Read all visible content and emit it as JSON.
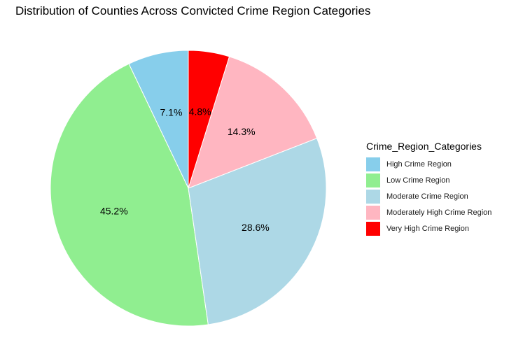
{
  "chart_data": {
    "type": "pie",
    "title": "Distribution of Counties Across Convicted Crime Region Categories",
    "legend_title": "Crime_Region_Categories",
    "legend_position": "right",
    "slices": [
      {
        "name": "High Crime Region",
        "value": 7.1,
        "label": "7.1%",
        "color": "#87CEEB"
      },
      {
        "name": "Low Crime Region",
        "value": 45.2,
        "label": "45.2%",
        "color": "#90EE90"
      },
      {
        "name": "Moderate Crime Region",
        "value": 28.6,
        "label": "28.6%",
        "color": "#ADD8E6"
      },
      {
        "name": "Moderately High Crime Region",
        "value": 14.3,
        "label": "14.3%",
        "color": "#FFB6C1"
      },
      {
        "name": "Very High Crime Region",
        "value": 4.8,
        "label": "4.8%",
        "color": "#FF0000"
      }
    ]
  }
}
